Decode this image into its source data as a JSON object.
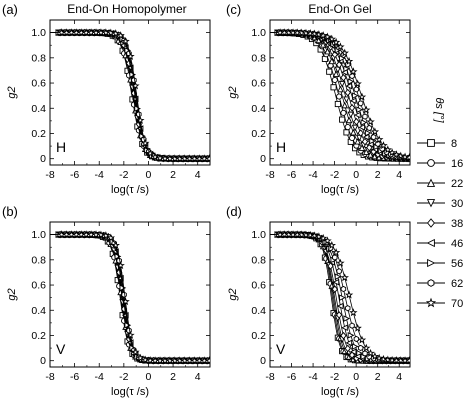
{
  "figure": {
    "legend": {
      "title": "θs [°]",
      "entries": [
        {
          "angle": "8",
          "marker": "square"
        },
        {
          "angle": "16",
          "marker": "circle"
        },
        {
          "angle": "22",
          "marker": "triangle-up"
        },
        {
          "angle": "30",
          "marker": "triangle-down"
        },
        {
          "angle": "38",
          "marker": "diamond"
        },
        {
          "angle": "46",
          "marker": "triangle-left"
        },
        {
          "angle": "56",
          "marker": "triangle-right"
        },
        {
          "angle": "62",
          "marker": "hexagon"
        },
        {
          "angle": "70",
          "marker": "star"
        }
      ]
    },
    "x_tick_labels": [
      "-8",
      "-6",
      "-4",
      "-2",
      "0",
      "2",
      "4"
    ],
    "y_tick_labels": [
      "1.0",
      "0.8",
      "0.6",
      "0.4",
      "0.2",
      "0"
    ],
    "xlabel": "log(τ /s)",
    "ylabel": "g2"
  },
  "chart_data": [
    {
      "panel": "(a)",
      "type": "line",
      "title": "End-On Homopolymer",
      "polarization": "H",
      "xlabel": "log(τ /s)",
      "ylabel": "g2",
      "xlim": [
        -8,
        5
      ],
      "ylim": [
        -0.05,
        1.1
      ],
      "series_params": {
        "tau50": [
          -1.35,
          -1.3,
          -1.25,
          -1.2,
          -1.15,
          -1.1,
          -1.05,
          -1.0,
          -0.95
        ],
        "width": [
          0.42,
          0.42,
          0.4,
          0.4,
          0.38,
          0.38,
          0.36,
          0.36,
          0.35
        ]
      }
    },
    {
      "panel": "(c)",
      "type": "line",
      "title": "End-On Gel",
      "polarization": "H",
      "xlabel": "log(τ /s)",
      "ylabel": "g2",
      "xlim": [
        -8,
        5
      ],
      "ylim": [
        -0.05,
        1.1
      ],
      "series_params": {
        "tau50": [
          -1.9,
          -1.6,
          -1.3,
          -1.0,
          -0.7,
          -0.4,
          -0.1,
          0.2,
          0.5
        ],
        "width": [
          0.75,
          0.75,
          0.78,
          0.8,
          0.82,
          0.85,
          0.88,
          0.9,
          0.95
        ]
      }
    },
    {
      "panel": "(b)",
      "type": "line",
      "title": "",
      "polarization": "V",
      "xlabel": "log(τ /s)",
      "ylabel": "g2",
      "xlim": [
        -8,
        5
      ],
      "ylim": [
        -0.05,
        1.1
      ],
      "series_params": {
        "tau50": [
          -2.3,
          -2.25,
          -2.2,
          -2.15,
          -2.1,
          -2.05,
          -2.0,
          -1.95,
          -1.9
        ],
        "width": [
          0.35,
          0.35,
          0.34,
          0.34,
          0.33,
          0.33,
          0.32,
          0.32,
          0.32
        ]
      }
    },
    {
      "panel": "(d)",
      "type": "line",
      "title": "",
      "polarization": "V",
      "xlabel": "log(τ /s)",
      "ylabel": "g2",
      "xlim": [
        -8,
        5
      ],
      "ylim": [
        -0.05,
        1.1
      ],
      "series_params": {
        "tau50": [
          -2.3,
          -2.2,
          -2.1,
          -2.0,
          -1.85,
          -1.6,
          -1.3,
          -1.0,
          -0.6
        ],
        "width": [
          0.4,
          0.4,
          0.42,
          0.44,
          0.48,
          0.52,
          0.58,
          0.65,
          0.7
        ]
      }
    }
  ]
}
